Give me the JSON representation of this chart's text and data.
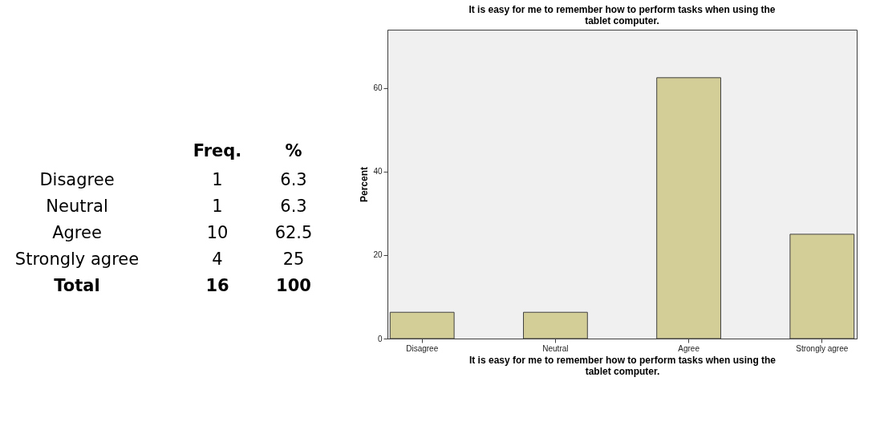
{
  "chart_data": [
    {
      "type": "other",
      "data_labels": true,
      "categories": [
        "Disagree",
        "Neutral",
        "Agree",
        "Strongly agree",
        "Total"
      ],
      "series": [
        {
          "name": "Freq.",
          "values": [
            1,
            1,
            10,
            4,
            16
          ]
        },
        {
          "name": "%",
          "values": [
            6.3,
            6.3,
            62.5,
            25,
            100
          ]
        }
      ]
    },
    {
      "type": "bar",
      "title": "It is easy for me to remember how to perform tasks when using the tablet computer.",
      "categories": [
        "Disagree",
        "Neutral",
        "Agree",
        "Strongly agree"
      ],
      "values": [
        6.3,
        6.3,
        62.5,
        25
      ],
      "color": "#d3cd98",
      "xlabel": "It is easy for me to remember how to perform tasks when using the tablet computer.",
      "ylabel": "Percent",
      "ylim": [
        0,
        74
      ],
      "yticks": [
        0,
        20,
        40,
        60
      ]
    }
  ]
}
